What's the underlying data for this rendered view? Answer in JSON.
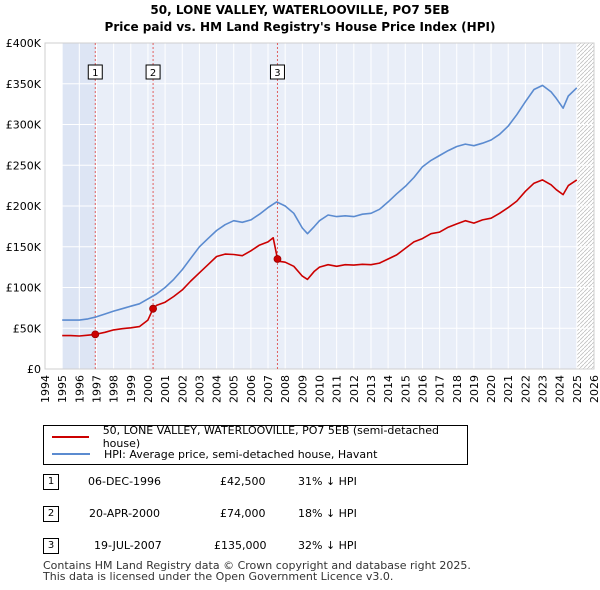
{
  "chart_data": {
    "type": "line",
    "title": "50, LONE VALLEY, WATERLOOVILLE, PO7 5EB",
    "subtitle": "Price paid vs. HM Land Registry's House Price Index (HPI)",
    "xlabel": "",
    "ylabel": "",
    "xlim": [
      1994,
      2026
    ],
    "ylim": [
      0,
      400000
    ],
    "x_ticks": [
      "1994",
      "1995",
      "1996",
      "1997",
      "1998",
      "1999",
      "2000",
      "2001",
      "2002",
      "2003",
      "2004",
      "2005",
      "2006",
      "2007",
      "2008",
      "2009",
      "2010",
      "2011",
      "2012",
      "2013",
      "2014",
      "2015",
      "2016",
      "2017",
      "2018",
      "2019",
      "2020",
      "2021",
      "2022",
      "2023",
      "2024",
      "2025",
      "2026"
    ],
    "y_ticks": [
      {
        "value": 0,
        "label": "£0"
      },
      {
        "value": 50000,
        "label": "£50K"
      },
      {
        "value": 100000,
        "label": "£100K"
      },
      {
        "value": 150000,
        "label": "£150K"
      },
      {
        "value": 200000,
        "label": "£200K"
      },
      {
        "value": 250000,
        "label": "£250K"
      },
      {
        "value": 300000,
        "label": "£300K"
      },
      {
        "value": 350000,
        "label": "£350K"
      },
      {
        "value": 400000,
        "label": "£400K"
      }
    ],
    "data_range": [
      1995.0,
      2025.0
    ],
    "series": [
      {
        "name": "50, LONE VALLEY, WATERLOOVILLE, PO7 5EB (semi-detached house)",
        "color": "#cc0000",
        "x": [
          1995.0,
          1995.5,
          1996.0,
          1996.5,
          1996.93,
          1997.5,
          1998.0,
          1998.5,
          1999.0,
          1999.5,
          2000.0,
          2000.3,
          2000.5,
          2001.0,
          2001.5,
          2002.0,
          2002.5,
          2003.0,
          2003.5,
          2004.0,
          2004.5,
          2005.0,
          2005.5,
          2006.0,
          2006.5,
          2007.0,
          2007.3,
          2007.55,
          2007.7,
          2008.0,
          2008.5,
          2009.0,
          2009.3,
          2009.7,
          2010.0,
          2010.5,
          2011.0,
          2011.5,
          2012.0,
          2012.5,
          2013.0,
          2013.5,
          2014.0,
          2014.5,
          2015.0,
          2015.5,
          2016.0,
          2016.5,
          2017.0,
          2017.5,
          2018.0,
          2018.5,
          2019.0,
          2019.5,
          2020.0,
          2020.5,
          2021.0,
          2021.5,
          2022.0,
          2022.5,
          2023.0,
          2023.5,
          2023.8,
          2024.2,
          2024.5,
          2025.0
        ],
        "values": [
          41000,
          41000,
          40500,
          41500,
          42500,
          45000,
          48000,
          49500,
          50500,
          52000,
          60000,
          74000,
          78000,
          82000,
          89000,
          97000,
          108000,
          118000,
          128000,
          138000,
          141000,
          140500,
          139000,
          145000,
          152000,
          156000,
          161000,
          135000,
          132000,
          131000,
          126000,
          114000,
          110000,
          120000,
          125000,
          128000,
          126000,
          128000,
          127500,
          128500,
          128000,
          130000,
          135000,
          140000,
          148000,
          156000,
          160000,
          166000,
          168000,
          174000,
          178000,
          182000,
          179000,
          183000,
          185000,
          191000,
          198000,
          206000,
          218000,
          228000,
          232000,
          226000,
          220000,
          214000,
          225000,
          232000
        ]
      },
      {
        "name": "HPI: Average price, semi-detached house, Havant",
        "color": "#5b8bd0",
        "x": [
          1995.0,
          1995.5,
          1996.0,
          1996.5,
          1997.0,
          1997.5,
          1998.0,
          1998.5,
          1999.0,
          1999.5,
          2000.0,
          2000.5,
          2001.0,
          2001.5,
          2002.0,
          2002.5,
          2003.0,
          2003.5,
          2004.0,
          2004.5,
          2005.0,
          2005.5,
          2006.0,
          2006.5,
          2007.0,
          2007.5,
          2008.0,
          2008.5,
          2009.0,
          2009.3,
          2009.7,
          2010.0,
          2010.5,
          2011.0,
          2011.5,
          2012.0,
          2012.5,
          2013.0,
          2013.5,
          2014.0,
          2014.5,
          2015.0,
          2015.5,
          2016.0,
          2016.5,
          2017.0,
          2017.5,
          2018.0,
          2018.5,
          2019.0,
          2019.5,
          2020.0,
          2020.5,
          2021.0,
          2021.5,
          2022.0,
          2022.5,
          2023.0,
          2023.5,
          2023.8,
          2024.2,
          2024.5,
          2025.0
        ],
        "values": [
          60000,
          60000,
          60000,
          61500,
          64000,
          67500,
          71000,
          74000,
          77000,
          80000,
          86000,
          92000,
          100000,
          110000,
          122000,
          136000,
          150000,
          160000,
          170000,
          177000,
          182000,
          180000,
          183000,
          190000,
          198000,
          205000,
          200000,
          191000,
          173000,
          166000,
          175000,
          182000,
          189000,
          187000,
          188000,
          187000,
          190000,
          191000,
          196000,
          205000,
          215000,
          224000,
          235000,
          248000,
          256000,
          262000,
          268000,
          273000,
          276000,
          274000,
          277000,
          281000,
          288000,
          298000,
          312000,
          328000,
          343000,
          348000,
          340000,
          332000,
          320000,
          335000,
          345000
        ]
      }
    ],
    "sales": [
      {
        "number": "1",
        "x": 1996.93,
        "value": 42500
      },
      {
        "number": "2",
        "x": 2000.3,
        "value": 74000
      },
      {
        "number": "3",
        "x": 2007.55,
        "value": 135000
      }
    ]
  },
  "legend": {
    "property_label": "50, LONE VALLEY, WATERLOOVILLE, PO7 5EB (semi-detached house)",
    "hpi_label": "HPI: Average price, semi-detached house, Havant"
  },
  "transactions": [
    {
      "number": "1",
      "date": "06-DEC-1996",
      "price": "£42,500",
      "hpi_diff": "31% ↓ HPI"
    },
    {
      "number": "2",
      "date": "20-APR-2000",
      "price": "£74,000",
      "hpi_diff": "18% ↓ HPI"
    },
    {
      "number": "3",
      "date": "19-JUL-2007",
      "price": "£135,000",
      "hpi_diff": "32% ↓ HPI"
    }
  ],
  "footer": {
    "line1": "Contains HM Land Registry data © Crown copyright and database right 2025.",
    "line2": "This data is licensed under the Open Government Licence v3.0."
  }
}
